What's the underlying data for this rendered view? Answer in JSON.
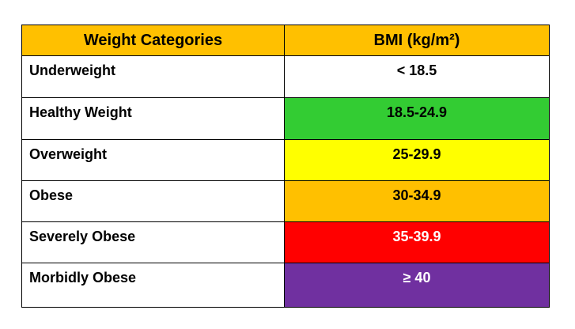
{
  "table": {
    "header": [
      "Weight Categories",
      "BMI (kg/m²)"
    ],
    "header_color": "#FFC000",
    "rows": [
      [
        "Underweight",
        "< 18.5"
      ],
      [
        "Healthy Weight",
        "18.5-24.9"
      ],
      [
        "Overweight",
        "25-29.9"
      ],
      [
        "Obese",
        "30-34.9"
      ],
      [
        "Severely Obese",
        "35-39.9"
      ],
      [
        "Morbidly Obese",
        "≥ 40"
      ]
    ],
    "row_colors": [
      "#FFFFFF",
      "#33CC33",
      "#FFFF00",
      "#FFC000",
      "#FF0000",
      "#7030A0"
    ],
    "row_text_colors": [
      "#000000",
      "#000000",
      "#000000",
      "#000000",
      "#FFFFFF",
      "#FFFFFF"
    ]
  }
}
